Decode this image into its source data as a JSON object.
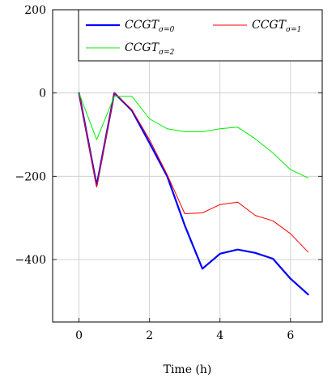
{
  "chart_data": {
    "type": "line",
    "title": "",
    "xlabel": "Time (h)",
    "ylabel": "",
    "xlim": [
      -0.75,
      6.9
    ],
    "ylim": [
      -550,
      200
    ],
    "xticks": [
      0,
      2,
      4,
      6
    ],
    "yticks": [
      200,
      0,
      -200,
      -400
    ],
    "xtick_labels": [
      "0",
      "2",
      "4",
      "6"
    ],
    "ytick_labels": [
      "200",
      "0",
      "−200",
      "−400"
    ],
    "grid": true,
    "legend_position": "top-right",
    "x": [
      0,
      0.5,
      1,
      1.5,
      2,
      2.5,
      3,
      3.5,
      4,
      4.5,
      5,
      5.5,
      6,
      6.5
    ],
    "series": [
      {
        "name": "CCGTσ=0",
        "label_base": "CCGT",
        "label_sub": "σ=0",
        "color": "#0000ff",
        "width": 2.2,
        "values": [
          0,
          -222,
          0,
          -42,
          -120,
          -200,
          -318,
          -422,
          -386,
          -376,
          -384,
          -398,
          -446,
          -484
        ]
      },
      {
        "name": "CCGTσ=1",
        "label_base": "CCGT",
        "label_sub": "σ=1",
        "color": "#ff0000",
        "width": 1.0,
        "values": [
          0,
          -226,
          0,
          -40,
          -112,
          -196,
          -290,
          -288,
          -268,
          -262,
          -294,
          -307,
          -338,
          -382
        ]
      },
      {
        "name": "CCGTσ=2",
        "label_base": "CCGT",
        "label_sub": "σ=2",
        "color": "#00ee00",
        "width": 1.0,
        "values": [
          0,
          -112,
          -8,
          -8,
          -62,
          -86,
          -93,
          -93,
          -86,
          -82,
          -110,
          -144,
          -184,
          -204
        ]
      }
    ]
  }
}
